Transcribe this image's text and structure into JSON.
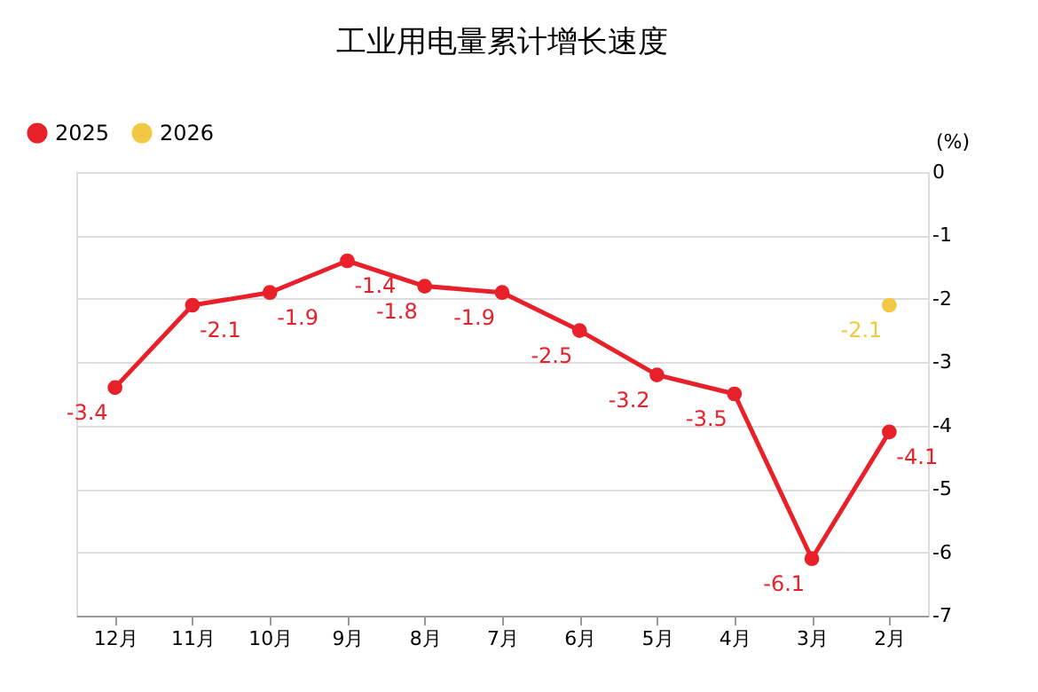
{
  "chart_data": {
    "type": "line",
    "title": "工业用电量累计增长速度",
    "ylabel": "(%)",
    "categories": [
      "12月",
      "11月",
      "10月",
      "9月",
      "8月",
      "7月",
      "6月",
      "5月",
      "4月",
      "3月",
      "2月"
    ],
    "series": [
      {
        "name": "2025",
        "color": "#e8202a",
        "values": [
          -3.4,
          -2.1,
          -1.9,
          -1.4,
          -1.8,
          -1.9,
          -2.5,
          -3.2,
          -3.5,
          -6.1,
          -4.1
        ]
      },
      {
        "name": "2026",
        "color": "#f2c744",
        "values": [
          null,
          null,
          null,
          null,
          null,
          null,
          null,
          null,
          null,
          null,
          -2.1
        ]
      }
    ],
    "ylim": [
      -7,
      0
    ],
    "yticks": [
      0,
      -1,
      -2,
      -3,
      -4,
      -5,
      -6,
      -7
    ],
    "grid": "y",
    "legend": "top left",
    "marker": "circle",
    "line_style": "solid",
    "data_labels": true
  }
}
